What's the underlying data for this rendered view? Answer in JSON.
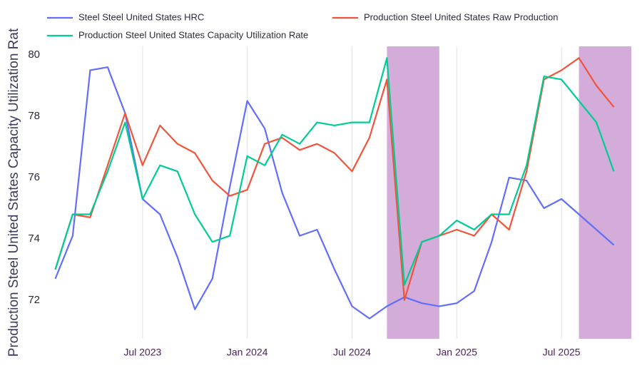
{
  "chart_data": {
    "type": "line",
    "y_axis_title": "Production Steel United States Capacity Utilization Rat",
    "x": [
      "Feb 2023",
      "Mar 2023",
      "Apr 2023",
      "May 2023",
      "Jun 2023",
      "Jul 2023",
      "Aug 2023",
      "Sep 2023",
      "Oct 2023",
      "Nov 2023",
      "Dec 2023",
      "Jan 2024",
      "Feb 2024",
      "Mar 2024",
      "Apr 2024",
      "May 2024",
      "Jun 2024",
      "Jul 2024",
      "Aug 2024",
      "Sep 2024",
      "Oct 2024",
      "Nov 2024",
      "Dec 2024",
      "Jan 2025",
      "Feb 2025",
      "Mar 2025",
      "Apr 2025",
      "May 2025",
      "Jun 2025",
      "Jul 2025",
      "Aug 2025",
      "Sep 2025",
      "Oct 2025"
    ],
    "series": [
      {
        "name": "Steel Steel United States HRC",
        "color": "#636efa",
        "values": [
          72.7,
          74.1,
          79.5,
          79.6,
          78.1,
          75.3,
          74.8,
          73.4,
          71.7,
          72.7,
          75.7,
          78.5,
          77.6,
          75.5,
          74.1,
          74.3,
          73.0,
          71.8,
          71.4,
          71.8,
          72.1,
          71.9,
          71.8,
          71.9,
          72.3,
          73.9,
          76.0,
          75.9,
          75.0,
          75.3,
          74.8,
          74.3,
          73.8
        ]
      },
      {
        "name": "Production Steel United States Raw Production",
        "color": "#ef553b",
        "values": [
          73.0,
          74.8,
          74.7,
          76.4,
          78.1,
          76.4,
          77.7,
          77.1,
          76.8,
          75.9,
          75.4,
          75.6,
          77.1,
          77.3,
          76.9,
          77.1,
          76.8,
          76.2,
          77.3,
          79.2,
          72.0,
          73.9,
          74.1,
          74.3,
          74.1,
          74.8,
          74.3,
          76.2,
          79.2,
          79.5,
          79.9,
          79.0,
          78.3
        ]
      },
      {
        "name": "Production Steel United States Capacity Utilization Rate",
        "color": "#00cc96",
        "values": [
          73.0,
          74.8,
          74.8,
          76.2,
          77.8,
          75.3,
          76.4,
          76.2,
          74.8,
          73.9,
          74.1,
          76.7,
          76.4,
          77.4,
          77.1,
          77.8,
          77.7,
          77.8,
          77.8,
          79.9,
          72.5,
          73.9,
          74.1,
          74.6,
          74.3,
          74.8,
          74.8,
          76.4,
          79.3,
          79.2,
          78.5,
          77.8,
          76.2
        ]
      }
    ],
    "xlim": [
      "Jan 2023",
      "Nov 2025"
    ],
    "xticks": [
      "Jul 2023",
      "Jan 2024",
      "Jul 2024",
      "Jan 2025",
      "Jul 2025"
    ],
    "ylim": [
      70.74,
      80.28
    ],
    "yticks": [
      72,
      74,
      76,
      78,
      80
    ],
    "grid": "x",
    "shaded_ranges": [
      [
        "Sep 2024",
        "Dec 2024"
      ],
      [
        "Aug 2025",
        "Nov 2025"
      ]
    ],
    "shade_color": "#d3acd9",
    "legend": "top"
  }
}
